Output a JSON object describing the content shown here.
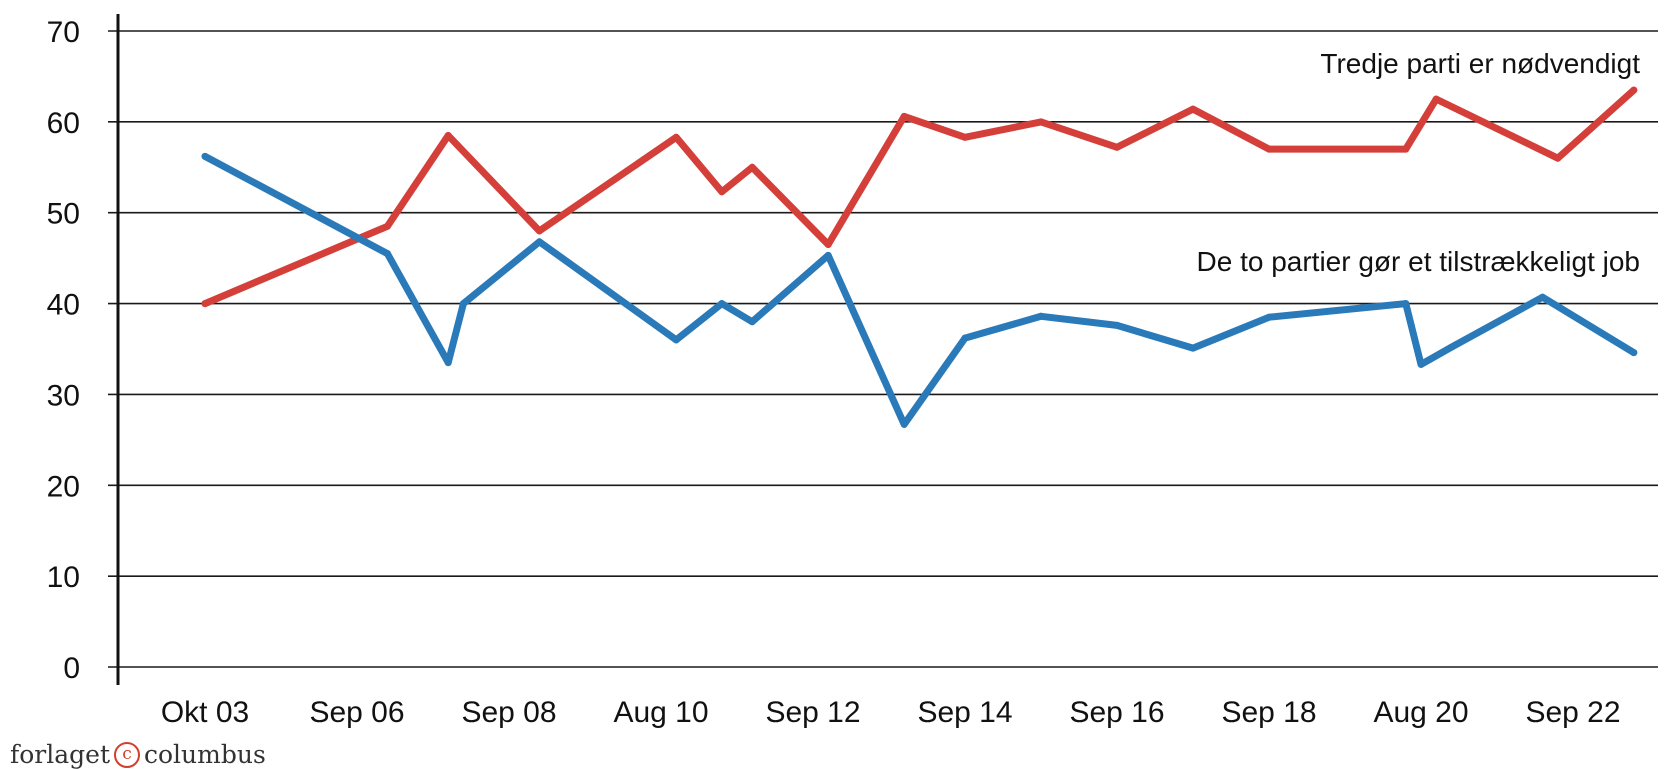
{
  "chart_data": {
    "type": "line",
    "categories": [
      "Okt 03",
      "Sep 06",
      "Sep 08",
      "Aug 10",
      "Sep 12",
      "Sep 14",
      "Sep 16",
      "Sep 18",
      "Aug 20",
      "Sep 22"
    ],
    "ylim": [
      0,
      70
    ],
    "yticks": [
      0,
      10,
      20,
      30,
      40,
      50,
      60,
      70
    ],
    "grid": true,
    "colors": {
      "red": "#d43f3a",
      "blue": "#2a7ab9"
    },
    "series": [
      {
        "name": "Tredje parti er nødvendigt",
        "color": "red",
        "x": [
          0,
          1.2,
          1.6,
          2.2,
          3.1,
          3.4,
          3.6,
          4.1,
          4.6,
          5.0,
          5.5,
          6.0,
          6.5,
          7.0,
          7.9,
          8.1,
          8.9,
          9.4
        ],
        "y": [
          40,
          48.5,
          58.5,
          48,
          58.3,
          52.3,
          55,
          46.5,
          60.6,
          58.3,
          60,
          57.2,
          61.4,
          57,
          57,
          62.5,
          56,
          63.5
        ]
      },
      {
        "name": "De to partier gør et tilstrækkeligt job",
        "color": "blue",
        "x": [
          0,
          1.2,
          1.6,
          1.7,
          2.2,
          3.1,
          3.4,
          3.6,
          4.1,
          4.6,
          5.0,
          5.5,
          6.0,
          6.5,
          7.0,
          7.9,
          8.0,
          8.2,
          8.8,
          9.4
        ],
        "y": [
          56.2,
          45.5,
          33.5,
          40,
          46.8,
          36,
          40,
          38,
          45.3,
          26.7,
          36.2,
          38.6,
          37.6,
          35.1,
          38.5,
          40,
          33.3,
          35.2,
          40.7,
          34.6
        ]
      }
    ]
  },
  "publisher": {
    "left": "forlaget",
    "mark": "c",
    "right": "columbus"
  }
}
